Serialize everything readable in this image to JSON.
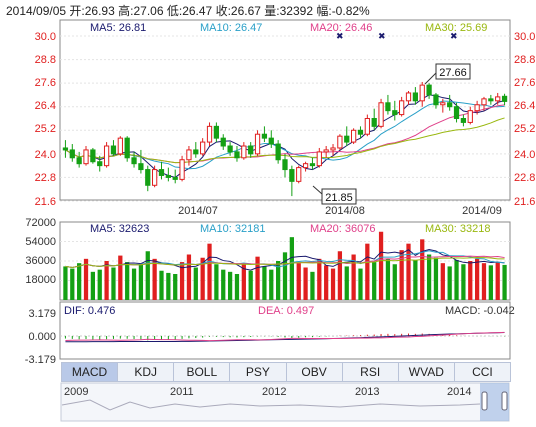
{
  "header": {
    "date": "2014/09/05",
    "open_label": "开:",
    "open": "26.93",
    "high_label": "高:",
    "high": "27.06",
    "low_label": "低:",
    "low": "26.47",
    "close_label": "收:",
    "close": "26.67",
    "vol_label": "量:",
    "vol": "32392",
    "chg_label": "幅:",
    "chg": "-0.82%"
  },
  "colors": {
    "up": "#e01f1f",
    "down": "#14a014",
    "ma5": "#1a1a6e",
    "ma10": "#2aa0c8",
    "ma20": "#e0408a",
    "ma30": "#9ab810",
    "dif": "#1a1a6e",
    "dea": "#e0408a"
  },
  "price_panel": {
    "ma5_label": "MA5: 26.81",
    "ma10_label": "MA10: 26.47",
    "ma20_label": "MA20: 26.46",
    "ma30_label": "MA30: 25.69",
    "y_ticks": [
      "30.0",
      "28.8",
      "27.6",
      "26.4",
      "25.2",
      "24.0",
      "22.8",
      "21.6"
    ],
    "x_ticks": [
      "2014/07",
      "2014/08",
      "2014/09"
    ],
    "max_callout": "27.66",
    "min_callout": "21.85"
  },
  "volume_panel": {
    "ma5_label": "MA5: 32623",
    "ma10_label": "MA10: 32181",
    "ma20_label": "MA20: 36076",
    "ma30_label": "MA30: 33218",
    "y_ticks": [
      "72000",
      "54000",
      "36000",
      "18000"
    ]
  },
  "macd_panel": {
    "dif_label": "DIF: 0.476",
    "dea_label": "DEA: 0.497",
    "macd_label": "MACD: -0.042",
    "y_ticks": [
      "3.179",
      "0.000",
      "-3.179"
    ]
  },
  "tabs": [
    "MACD",
    "KDJ",
    "BOLL",
    "PSY",
    "OBV",
    "RSI",
    "WVAD",
    "CCI"
  ],
  "active_tab": "MACD",
  "navigator_years": [
    "2009",
    "2011",
    "2012",
    "2013",
    "2014"
  ],
  "chart_data": {
    "type": "candlestick",
    "x_ticks": [
      "2014/07",
      "2014/08",
      "2014/09"
    ],
    "ylim": [
      21.6,
      30.0
    ],
    "ohlc": [
      [
        24.3,
        24.7,
        23.8,
        24.2
      ],
      [
        24.2,
        24.5,
        23.6,
        23.8
      ],
      [
        23.8,
        24.1,
        23.3,
        23.5
      ],
      [
        23.5,
        24.4,
        23.4,
        24.2
      ],
      [
        24.2,
        24.3,
        23.5,
        23.6
      ],
      [
        23.6,
        23.9,
        23.1,
        23.4
      ],
      [
        23.4,
        24.6,
        23.3,
        24.4
      ],
      [
        24.4,
        24.7,
        23.9,
        24.0
      ],
      [
        24.0,
        24.9,
        23.9,
        24.8
      ],
      [
        24.8,
        24.9,
        23.6,
        23.8
      ],
      [
        23.8,
        24.1,
        23.3,
        23.5
      ],
      [
        23.5,
        24.2,
        23.0,
        23.2
      ],
      [
        23.2,
        23.4,
        22.1,
        22.4
      ],
      [
        22.4,
        23.4,
        22.3,
        23.2
      ],
      [
        23.2,
        23.6,
        22.7,
        22.9
      ],
      [
        22.9,
        23.3,
        22.6,
        22.8
      ],
      [
        22.8,
        23.2,
        22.5,
        22.7
      ],
      [
        22.7,
        23.9,
        22.6,
        23.7
      ],
      [
        23.7,
        24.4,
        23.4,
        24.2
      ],
      [
        24.2,
        24.6,
        23.8,
        24.0
      ],
      [
        24.0,
        24.8,
        23.9,
        24.6
      ],
      [
        24.6,
        25.6,
        24.4,
        25.4
      ],
      [
        25.4,
        25.6,
        24.6,
        24.8
      ],
      [
        24.8,
        25.0,
        24.2,
        24.4
      ],
      [
        24.4,
        24.6,
        23.9,
        24.1
      ],
      [
        24.1,
        24.4,
        23.6,
        23.8
      ],
      [
        23.8,
        24.6,
        23.7,
        24.4
      ],
      [
        24.4,
        24.6,
        23.8,
        24.0
      ],
      [
        24.0,
        25.2,
        23.9,
        25.0
      ],
      [
        25.0,
        25.4,
        24.6,
        24.8
      ],
      [
        24.8,
        25.2,
        24.3,
        24.5
      ],
      [
        24.5,
        24.7,
        23.5,
        23.7
      ],
      [
        23.7,
        24.0,
        22.8,
        23.2
      ],
      [
        23.2,
        23.4,
        21.85,
        22.6
      ],
      [
        22.6,
        23.4,
        22.5,
        23.3
      ],
      [
        23.3,
        23.6,
        23.1,
        23.5
      ],
      [
        23.5,
        23.8,
        23.2,
        23.4
      ],
      [
        23.4,
        24.3,
        23.3,
        24.1
      ],
      [
        24.1,
        24.4,
        23.8,
        24.2
      ],
      [
        24.2,
        24.5,
        23.9,
        24.3
      ],
      [
        24.3,
        25.0,
        24.2,
        24.9
      ],
      [
        24.9,
        25.4,
        24.4,
        24.6
      ],
      [
        24.6,
        25.3,
        24.5,
        25.2
      ],
      [
        25.2,
        25.4,
        24.8,
        25.0
      ],
      [
        25.0,
        26.0,
        24.9,
        25.8
      ],
      [
        25.8,
        26.3,
        25.2,
        25.4
      ],
      [
        25.4,
        26.8,
        25.3,
        26.6
      ],
      [
        26.6,
        27.0,
        26.0,
        26.2
      ],
      [
        26.2,
        26.7,
        25.7,
        26.0
      ],
      [
        26.0,
        26.9,
        25.9,
        26.7
      ],
      [
        26.7,
        27.2,
        26.5,
        27.1
      ],
      [
        27.1,
        27.4,
        26.5,
        26.7
      ],
      [
        26.7,
        27.66,
        26.4,
        27.5
      ],
      [
        27.5,
        27.6,
        26.8,
        27.0
      ],
      [
        27.0,
        27.1,
        26.3,
        26.5
      ],
      [
        26.5,
        26.8,
        26.1,
        26.6
      ],
      [
        26.6,
        27.0,
        26.2,
        26.4
      ],
      [
        26.4,
        26.6,
        25.6,
        25.8
      ],
      [
        25.8,
        26.0,
        25.4,
        25.6
      ],
      [
        25.6,
        26.4,
        25.5,
        26.2
      ],
      [
        26.2,
        26.7,
        26.0,
        26.5
      ],
      [
        26.5,
        26.9,
        26.2,
        26.8
      ],
      [
        26.8,
        27.0,
        26.5,
        26.7
      ],
      [
        26.7,
        27.1,
        26.5,
        26.9
      ],
      [
        26.93,
        27.06,
        26.47,
        26.67
      ]
    ],
    "volume": [
      31000,
      29000,
      34000,
      38000,
      26000,
      28000,
      36000,
      30000,
      41000,
      35000,
      29000,
      33000,
      45000,
      38000,
      27000,
      25000,
      24000,
      35000,
      42000,
      30000,
      39000,
      52000,
      33000,
      28000,
      26000,
      24000,
      33000,
      27000,
      40000,
      31000,
      28000,
      36000,
      44000,
      58000,
      34000,
      30000,
      26000,
      38000,
      32000,
      29000,
      45000,
      31000,
      42000,
      29000,
      52000,
      35000,
      63000,
      38000,
      33000,
      46000,
      52000,
      37000,
      56000,
      42000,
      39000,
      34000,
      31000,
      37000,
      33000,
      36000,
      38000,
      34000,
      32000,
      35000,
      32392
    ],
    "macd_hist": [
      -0.35,
      -0.4,
      -0.45,
      -0.42,
      -0.48,
      -0.5,
      -0.44,
      -0.4,
      -0.36,
      -0.38,
      -0.42,
      -0.46,
      -0.6,
      -0.55,
      -0.52,
      -0.5,
      -0.48,
      -0.4,
      -0.32,
      -0.28,
      -0.22,
      -0.1,
      -0.12,
      -0.15,
      -0.18,
      -0.2,
      -0.16,
      -0.14,
      -0.06,
      -0.04,
      -0.05,
      -0.12,
      -0.2,
      -0.3,
      -0.24,
      -0.18,
      -0.16,
      -0.1,
      -0.06,
      -0.02,
      0.05,
      0.06,
      0.1,
      0.12,
      0.18,
      0.2,
      0.28,
      0.3,
      0.26,
      0.3,
      0.34,
      0.3,
      0.34,
      0.3,
      0.24,
      0.2,
      0.16,
      0.08,
      0.02,
      0.0,
      -0.02,
      -0.02,
      -0.03,
      -0.03,
      -0.042
    ]
  }
}
